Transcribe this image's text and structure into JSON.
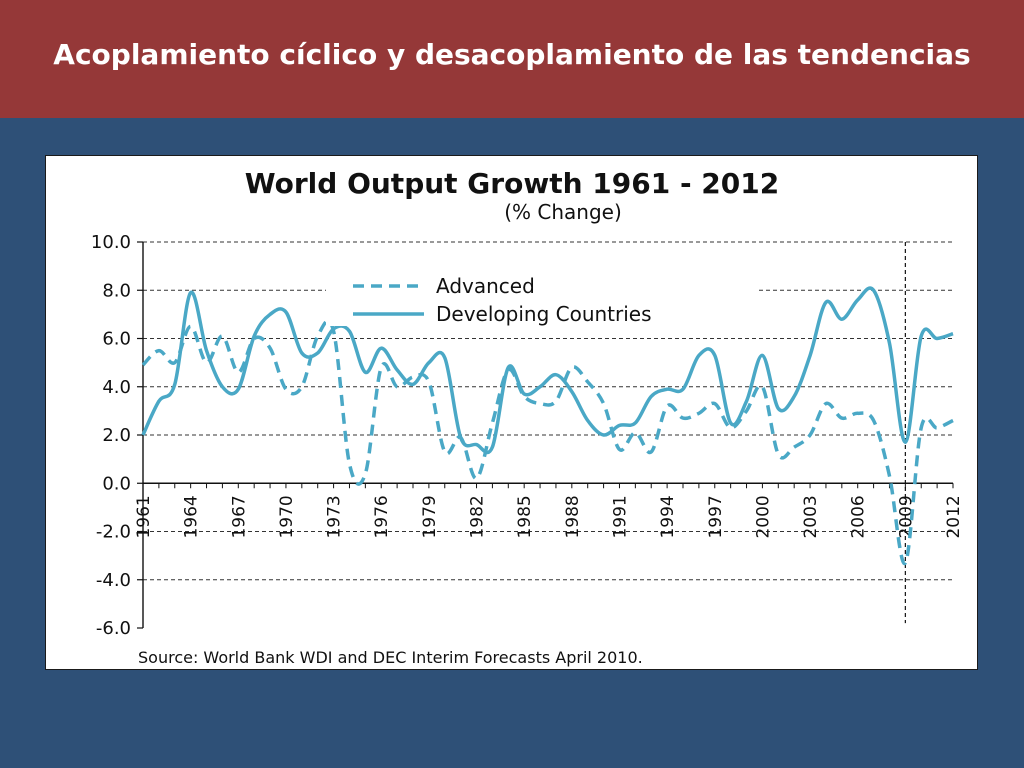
{
  "slide": {
    "title": "Acoplamiento cíclico y desacoplamiento de las tendencias",
    "colors": {
      "header": "#953838",
      "background": "#2e5077",
      "series": "#4aa8c6"
    }
  },
  "chart_data": {
    "type": "line",
    "title": "World Output Growth 1961 - 2012",
    "subtitle": "(% Change)",
    "source": "Source: World Bank WDI and DEC Interim Forecasts April 2010.",
    "xlim": [
      1961,
      2012
    ],
    "ylim": [
      -6,
      10
    ],
    "x_ticks": [
      "1961",
      "1964",
      "1967",
      "1970",
      "1973",
      "1976",
      "1979",
      "1982",
      "1985",
      "1988",
      "1991",
      "1994",
      "1997",
      "2000",
      "2003",
      "2006",
      "2009",
      "2012"
    ],
    "y_ticks": [
      "10.0",
      "8.0",
      "6.0",
      "4.0",
      "2.0",
      "0.0",
      "-2.0",
      "-4.0",
      "-6.0"
    ],
    "grid": "horizontal dashed",
    "vertical_marker_year": 2009,
    "legend": "top-center",
    "x": [
      1961,
      1962,
      1963,
      1964,
      1965,
      1966,
      1967,
      1968,
      1969,
      1970,
      1971,
      1972,
      1973,
      1974,
      1975,
      1976,
      1977,
      1978,
      1979,
      1980,
      1981,
      1982,
      1983,
      1984,
      1985,
      1986,
      1987,
      1988,
      1989,
      1990,
      1991,
      1992,
      1993,
      1994,
      1995,
      1996,
      1997,
      1998,
      1999,
      2000,
      2001,
      2002,
      2003,
      2004,
      2005,
      2006,
      2007,
      2008,
      2009,
      2010,
      2011,
      2012
    ],
    "series": [
      {
        "name": "Advanced",
        "style": "dashed",
        "values": [
          4.9,
          5.5,
          5.0,
          6.5,
          5.0,
          6.1,
          4.6,
          6.0,
          5.6,
          3.9,
          4.0,
          6.1,
          6.3,
          0.8,
          0.4,
          4.8,
          4.0,
          4.4,
          4.2,
          1.3,
          1.9,
          0.2,
          2.5,
          4.7,
          3.6,
          3.3,
          3.4,
          4.8,
          4.2,
          3.3,
          1.4,
          2.1,
          1.3,
          3.2,
          2.7,
          2.9,
          3.3,
          2.3,
          3.0,
          4.0,
          1.2,
          1.5,
          2.0,
          3.3,
          2.7,
          2.9,
          2.6,
          0.3,
          -3.3,
          2.3,
          2.3,
          2.6
        ]
      },
      {
        "name": "Developing Countries",
        "style": "solid",
        "values": [
          2.0,
          3.4,
          4.1,
          7.9,
          5.5,
          4.0,
          3.9,
          6.1,
          7.0,
          7.1,
          5.4,
          5.4,
          6.4,
          6.3,
          4.6,
          5.6,
          4.7,
          4.1,
          5.0,
          5.2,
          1.9,
          1.6,
          1.5,
          4.8,
          3.7,
          4.0,
          4.5,
          3.8,
          2.6,
          2.0,
          2.4,
          2.5,
          3.6,
          3.9,
          3.9,
          5.3,
          5.3,
          2.5,
          3.4,
          5.3,
          3.1,
          3.6,
          5.3,
          7.5,
          6.8,
          7.6,
          8.0,
          5.8,
          1.7,
          6.1,
          6.0,
          6.2
        ]
      }
    ]
  }
}
